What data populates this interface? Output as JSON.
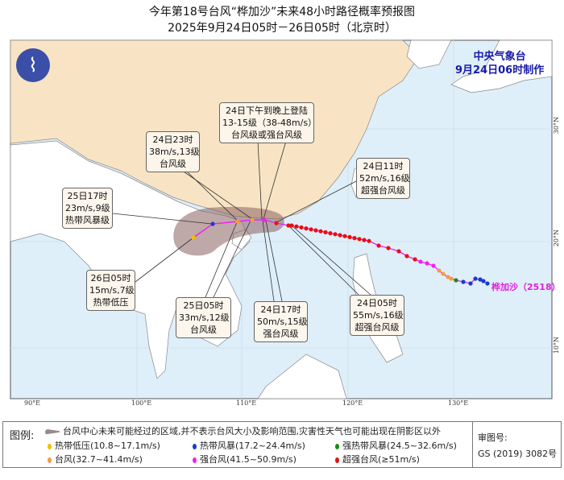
{
  "title": {
    "line1": "今年第18号台风“桦加沙”未来48小时路径概率预报图",
    "line2": "2025年9月24日05时－26日05时（北京时）"
  },
  "issuer": {
    "name": "中央气象台",
    "time": "9月24日06时制作"
  },
  "typhoon_label": "桦加沙（2518）",
  "axes": {
    "lon": [
      "90°E",
      "100°E",
      "110°E",
      "120°E",
      "130°E"
    ],
    "lat": [
      "30°N",
      "20°N",
      "10°N"
    ]
  },
  "callouts": [
    {
      "line1": "24日下午到晚上登陆",
      "line2": "13-15级（38-48m/s）",
      "line3": "台风级或强台风级"
    },
    {
      "line1": "24日23时",
      "line2": "38m/s,13级",
      "line3": "台风级"
    },
    {
      "line1": "24日11时",
      "line2": "52m/s,16级",
      "line3": "超强台风级"
    },
    {
      "line1": "25日17时",
      "line2": "23m/s,9级",
      "line3": "热带风暴级"
    },
    {
      "line1": "26日05时",
      "line2": "15m/s,7级",
      "line3": "热带低压"
    },
    {
      "line1": "25日05时",
      "line2": "33m/s,12级",
      "line3": "台风级"
    },
    {
      "line1": "24日17时",
      "line2": "50m/s,15级",
      "line3": "强台风级"
    },
    {
      "line1": "24日05时",
      "line2": "55m/s,16级",
      "line3": "超强台风级"
    }
  ],
  "legend": {
    "title": "图例:",
    "cone": "台风中心未来可能经过的区域,并不表示台风大小及影响范围,灾害性天气也可能出现在阴影区以外",
    "items": [
      {
        "label": "热带低压(10.8~17.1m/s)",
        "color": "#f0c000"
      },
      {
        "label": "热带风暴(17.2~24.4m/s)",
        "color": "#1a3cc8"
      },
      {
        "label": "强热带风暴(24.5~32.6m/s)",
        "color": "#1a8a1a"
      },
      {
        "label": "台风(32.7~41.4m/s)",
        "color": "#f79a4a"
      },
      {
        "label": "强台风(41.5~50.9m/s)",
        "color": "#f020f0"
      },
      {
        "label": "超强台风(≥51m/s)",
        "color": "#e81010"
      }
    ],
    "review_label": "审图号:",
    "review_no": "GS (2019) 3082号"
  },
  "colors": {
    "sea": "#dfeffa",
    "china": "#f8e4c4",
    "land": "#ffffff",
    "cone": "#8a6060",
    "track": "#f020f0"
  }
}
